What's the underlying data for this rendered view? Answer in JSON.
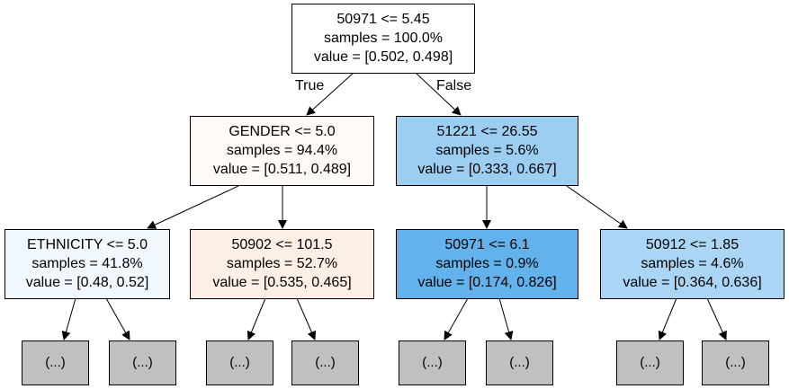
{
  "edge_labels": {
    "true_label": "True",
    "false_label": "False"
  },
  "nodes": {
    "root": {
      "condition": "50971 <= 5.45",
      "samples": "samples = 100.0%",
      "value": "value = [0.502, 0.498]",
      "fill": "#ffffff"
    },
    "l": {
      "condition": "GENDER <= 5.0",
      "samples": "samples = 94.4%",
      "value": "value = [0.511, 0.489]",
      "fill": "#fffaf7"
    },
    "r": {
      "condition": "51221 <= 26.55",
      "samples": "samples = 5.6%",
      "value": "value = [0.333, 0.667]",
      "fill": "#9ccef2"
    },
    "ll": {
      "condition": "ETHNICITY <= 5.0",
      "samples": "samples = 41.8%",
      "value": "value = [0.48, 0.52]",
      "fill": "#f0f8fd"
    },
    "lr": {
      "condition": "50902 <= 101.5",
      "samples": "samples = 52.7%",
      "value": "value = [0.535, 0.465]",
      "fill": "#fdefe5"
    },
    "rl": {
      "condition": "50971 <= 6.1",
      "samples": "samples = 0.9%",
      "value": "value = [0.174, 0.826]",
      "fill": "#63b2eb"
    },
    "rr": {
      "condition": "50912 <= 1.85",
      "samples": "samples = 4.6%",
      "value": "value = [0.364, 0.636]",
      "fill": "#aad5f4"
    }
  },
  "leaves": [
    "(...)",
    "(...)",
    "(...)",
    "(...)",
    "(...)",
    "(...)",
    "(...)",
    "(...)"
  ]
}
